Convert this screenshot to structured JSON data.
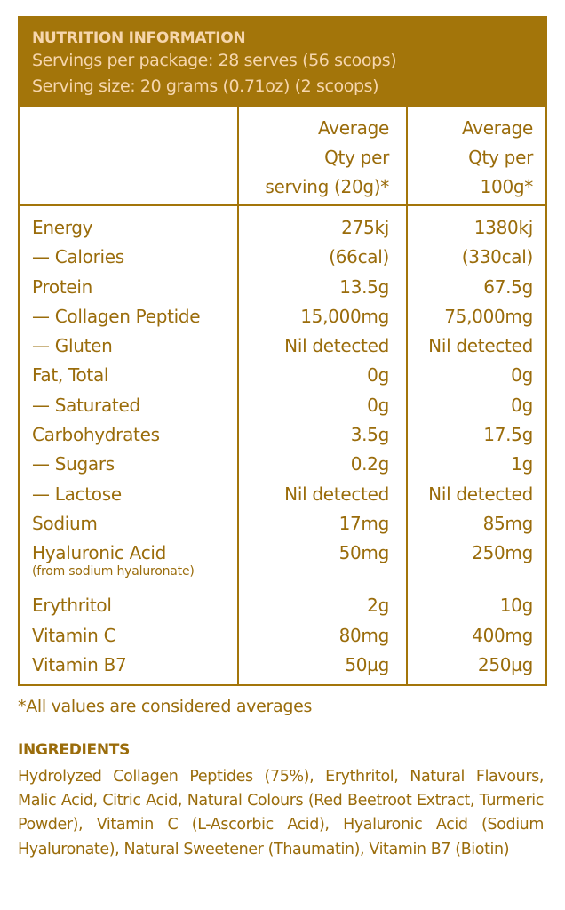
{
  "header": {
    "title": "NUTRITION INFORMATION",
    "servings_per_package": "Servings per package: 28 serves (56 scoops)",
    "serving_size": "Serving size: 20 grams (0.71oz) (2 scoops)"
  },
  "columns": [
    {
      "lines": [
        "Average",
        "Qty per",
        "serving (20g)*"
      ]
    },
    {
      "lines": [
        "Average",
        "Qty per",
        "100g*"
      ]
    }
  ],
  "rows": [
    {
      "name": "Energy",
      "per_serving": "275kj",
      "per_100g": "1380kj"
    },
    {
      "name": "— Calories",
      "per_serving": "(66cal)",
      "per_100g": "(330cal)"
    },
    {
      "name": "Protein",
      "per_serving": "13.5g",
      "per_100g": "67.5g"
    },
    {
      "name": "— Collagen Peptide",
      "per_serving": "15,000mg",
      "per_100g": "75,000mg"
    },
    {
      "name": "— Gluten",
      "per_serving": "Nil detected",
      "per_100g": "Nil detected"
    },
    {
      "name": "Fat, Total",
      "per_serving": "0g",
      "per_100g": "0g"
    },
    {
      "name": "— Saturated",
      "per_serving": "0g",
      "per_100g": "0g"
    },
    {
      "name": "Carbohydrates",
      "per_serving": "3.5g",
      "per_100g": "17.5g"
    },
    {
      "name": "— Sugars",
      "per_serving": "0.2g",
      "per_100g": "1g"
    },
    {
      "name": "— Lactose",
      "per_serving": "Nil detected",
      "per_100g": "Nil detected"
    },
    {
      "name": "Sodium",
      "per_serving": "17mg",
      "per_100g": "85mg"
    },
    {
      "name": "Hyaluronic Acid",
      "note": "(from sodium hyaluronate)",
      "per_serving": "50mg",
      "per_100g": "250mg"
    },
    {
      "name": "Erythritol",
      "per_serving": "2g",
      "per_100g": "10g"
    },
    {
      "name": "Vitamin C",
      "per_serving": "80mg",
      "per_100g": "400mg"
    },
    {
      "name": "Vitamin B7",
      "per_serving": "50µg",
      "per_100g": "250µg"
    }
  ],
  "footnote": "*All values are considered averages",
  "ingredients": {
    "title": "INGREDIENTS",
    "text": "Hydrolyzed Collagen Peptides (75%), Erythritol, Natural Flavours, Malic Acid, Citric Acid, Natural Colours (Red Beetroot Extract, Turmeric Powder), Vitamin C (L-Ascorbic Acid), Hyaluronic Acid (Sodium Hyaluronate), Natural Sweetener (Thaumatin), Vitamin B7 (Biotin)"
  },
  "colors": {
    "brand": "#a3750a",
    "header_text": "#f6d6ad",
    "text": "#9a6c0b"
  }
}
